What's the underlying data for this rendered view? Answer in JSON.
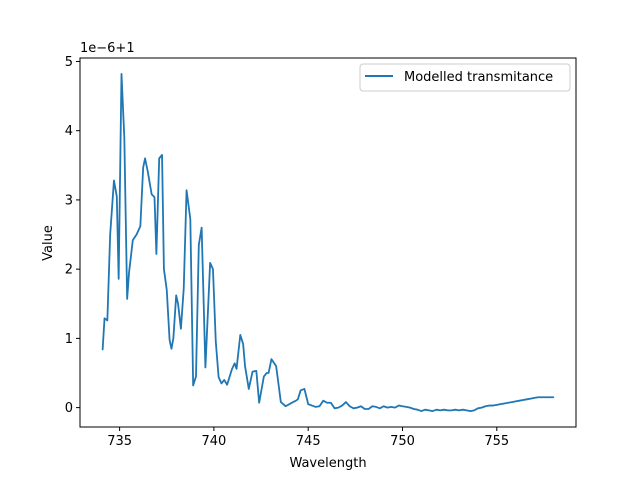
{
  "chart_data": {
    "type": "line",
    "title": "",
    "xlabel": "Wavelength",
    "ylabel": "Value",
    "offset_label": "1e−6+1",
    "xlim": [
      732.9,
      759.2
    ],
    "ylim": [
      -0.28,
      5.05
    ],
    "xticks": [
      735,
      740,
      745,
      750,
      755
    ],
    "xtick_labels": [
      "735",
      "740",
      "745",
      "750",
      "755"
    ],
    "yticks": [
      0,
      1,
      2,
      3,
      4,
      5
    ],
    "ytick_labels": [
      "0",
      "1",
      "2",
      "3",
      "4",
      "5"
    ],
    "grid": false,
    "legend_position": "top-right",
    "series": [
      {
        "name": "Modelled transmitance",
        "color": "#1f77b4",
        "x": [
          734.1,
          734.2,
          734.35,
          734.5,
          734.7,
          734.85,
          734.95,
          735.1,
          735.25,
          735.4,
          735.5,
          735.7,
          735.9,
          736.1,
          736.25,
          736.35,
          736.5,
          736.7,
          736.85,
          736.95,
          737.1,
          737.25,
          737.35,
          737.5,
          737.65,
          737.75,
          737.85,
          738.0,
          738.1,
          738.25,
          738.4,
          738.55,
          738.75,
          738.9,
          739.05,
          739.2,
          739.35,
          739.55,
          739.8,
          739.95,
          740.1,
          740.25,
          740.4,
          740.55,
          740.7,
          740.85,
          740.95,
          741.1,
          741.2,
          741.4,
          741.55,
          741.65,
          741.85,
          742.05,
          742.25,
          742.4,
          742.55,
          742.65,
          742.8,
          742.9,
          743.05,
          743.3,
          743.55,
          743.8,
          744.0,
          744.2,
          744.35,
          744.45,
          744.6,
          744.8,
          745.0,
          745.2,
          745.4,
          745.6,
          745.8,
          746.0,
          746.2,
          746.4,
          746.6,
          746.8,
          747.0,
          747.2,
          747.4,
          747.6,
          747.8,
          748.0,
          748.2,
          748.4,
          748.6,
          748.8,
          749.0,
          749.2,
          749.4,
          749.6,
          749.8,
          750.0,
          750.2,
          750.4,
          750.6,
          750.8,
          751.0,
          751.2,
          751.4,
          751.6,
          751.8,
          752.0,
          752.2,
          752.4,
          752.6,
          752.8,
          753.0,
          753.2,
          753.4,
          753.6,
          753.8,
          754.0,
          754.2,
          754.4,
          754.6,
          754.8,
          755.0,
          755.2,
          755.4,
          755.6,
          755.8,
          756.0,
          756.2,
          756.4,
          756.6,
          756.8,
          757.0,
          757.2,
          757.4,
          757.6,
          757.8,
          758.0
        ],
        "y": [
          0.84,
          1.29,
          1.26,
          2.5,
          3.28,
          3.05,
          1.86,
          4.82,
          3.9,
          1.57,
          1.95,
          2.42,
          2.5,
          2.62,
          3.47,
          3.6,
          3.4,
          3.08,
          3.04,
          2.22,
          3.6,
          3.65,
          2.0,
          1.7,
          0.98,
          0.85,
          1.0,
          1.62,
          1.5,
          1.14,
          1.72,
          3.14,
          2.72,
          0.32,
          0.45,
          2.35,
          2.6,
          0.58,
          2.09,
          2.0,
          0.95,
          0.44,
          0.35,
          0.4,
          0.33,
          0.46,
          0.55,
          0.64,
          0.56,
          1.05,
          0.92,
          0.6,
          0.27,
          0.52,
          0.53,
          0.07,
          0.3,
          0.45,
          0.5,
          0.5,
          0.7,
          0.6,
          0.08,
          0.02,
          0.05,
          0.08,
          0.1,
          0.12,
          0.25,
          0.27,
          0.05,
          0.03,
          0.01,
          0.02,
          0.1,
          0.07,
          0.07,
          -0.01,
          0.0,
          0.03,
          0.08,
          0.02,
          -0.01,
          0.0,
          0.02,
          -0.02,
          -0.02,
          0.02,
          0.01,
          -0.01,
          0.02,
          0.0,
          0.01,
          0.0,
          0.03,
          0.02,
          0.01,
          0.0,
          -0.02,
          -0.03,
          -0.05,
          -0.03,
          -0.04,
          -0.05,
          -0.03,
          -0.04,
          -0.03,
          -0.04,
          -0.04,
          -0.03,
          -0.04,
          -0.03,
          -0.04,
          -0.05,
          -0.04,
          -0.01,
          0.0,
          0.02,
          0.03,
          0.03,
          0.04,
          0.05,
          0.06,
          0.07,
          0.08,
          0.09,
          0.1,
          0.11,
          0.12,
          0.13,
          0.14,
          0.15,
          0.15,
          0.15,
          0.15,
          0.15
        ]
      }
    ]
  }
}
